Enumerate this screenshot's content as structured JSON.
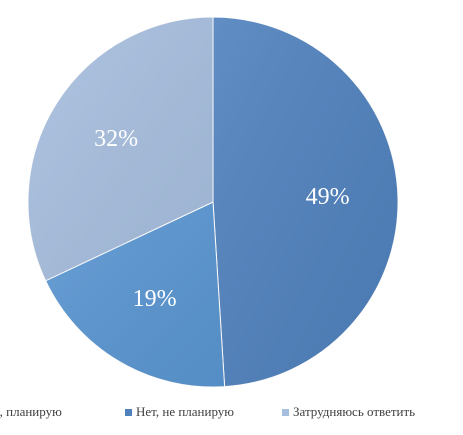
{
  "chart_data": {
    "type": "pie",
    "title": "",
    "start_angle_deg": 0,
    "direction": "clockwise",
    "slices": [
      {
        "label": "Нет, не планирую",
        "value": 49,
        "value_label": "49%",
        "color": "#4f81bd"
      },
      {
        "label": "Да, планирую",
        "value": 19,
        "value_label": "19%",
        "color": "#5a96d2"
      },
      {
        "label": "Затрудняюсь ответить",
        "value": 32,
        "value_label": "32%",
        "color": "#a7bfdf"
      }
    ],
    "legend": {
      "position": "bottom",
      "items": [
        {
          "label": "Да, планирую",
          "color": "#5a96d2"
        },
        {
          "label": "Нет, не планирую",
          "color": "#4f81bd"
        },
        {
          "label": "Затрудняюсь ответить",
          "color": "#a7bfdf"
        }
      ]
    }
  }
}
